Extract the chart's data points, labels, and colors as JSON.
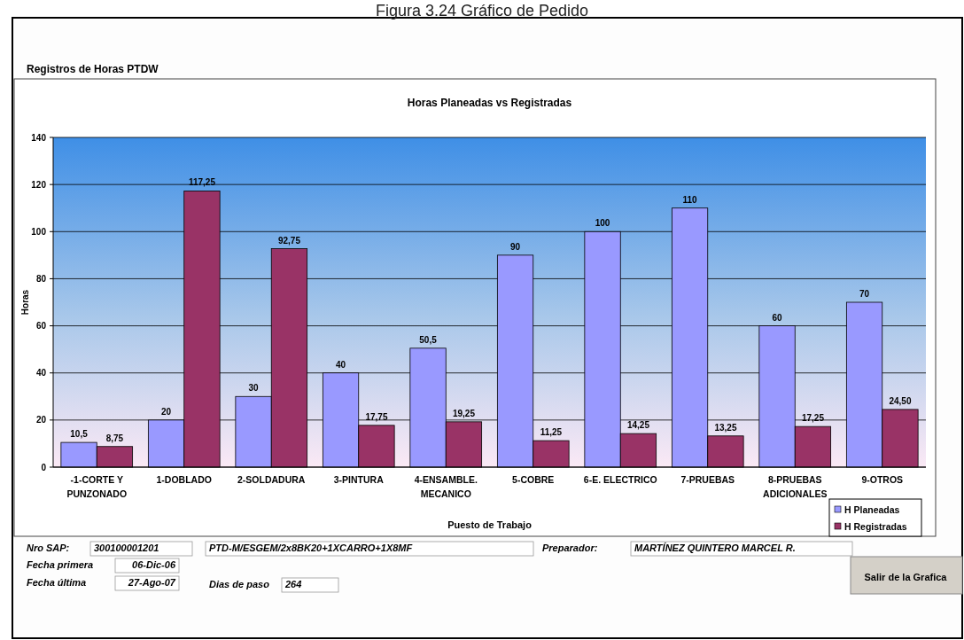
{
  "chart_data": {
    "type": "bar",
    "title": "Horas Planeadas vs Registradas",
    "subtitle": "Registros de Horas PTDW",
    "xlabel": "Puesto de Trabajo",
    "ylabel": "Horas",
    "categories": [
      "-1-CORTE Y PUNZONADO",
      "1-DOBLADO",
      "2-SOLDADURA",
      "3-PINTURA",
      "4-ENSAMBLE. MECANICO",
      "5-COBRE",
      "6-E. ELECTRICO",
      "7-PRUEBAS",
      "8-PRUEBAS ADICIONALES",
      "9-OTROS"
    ],
    "series": [
      {
        "name": "H Planeadas",
        "color": "#9999ff",
        "values": [
          10.5,
          20,
          30,
          40,
          50.5,
          90,
          100,
          110,
          60,
          70
        ],
        "value_labels": [
          "10,5",
          "20",
          "30",
          "40",
          "50,5",
          "90",
          "100",
          "110",
          "60",
          "70"
        ]
      },
      {
        "name": "H Registradas",
        "color": "#993366",
        "values": [
          8.75,
          117.25,
          92.75,
          17.75,
          19.25,
          11.25,
          14.25,
          13.25,
          17.25,
          24.5
        ],
        "value_labels": [
          "8,75",
          "117,25",
          "92,75",
          "17,75",
          "19,25",
          "11,25",
          "14,25",
          "13,25",
          "17,25",
          "24,50"
        ]
      }
    ],
    "ylim": [
      0,
      140
    ],
    "yticks": [
      0,
      20,
      40,
      60,
      80,
      100,
      120,
      140
    ],
    "grid": "y",
    "legend": "bottom right",
    "annotations": [
      "Figura 3.24 Gráfico de Pedido",
      "Nro SAP:",
      "300100001201",
      "PTD-M/ESGEM/2x8BK20+1XCARRO+1X8MF",
      "Preparador:",
      "MARTÍNEZ QUINTERO MARCEL R.",
      "Fecha primera",
      "06-Dic-06",
      "Fecha última",
      "27-Ago-07",
      "Dias de paso",
      "264",
      "Salir de la Grafica"
    ]
  }
}
